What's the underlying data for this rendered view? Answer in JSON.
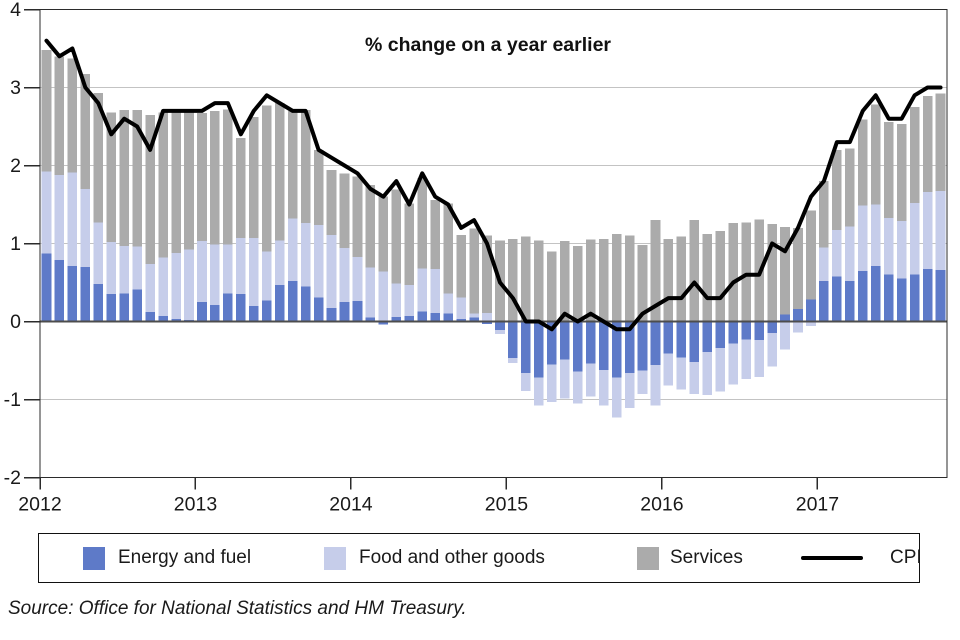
{
  "title": "% change on a year earlier",
  "source": "Source: Office for National Statistics and HM Treasury.",
  "colors": {
    "energy": "#5e7ac8",
    "food": "#c6cdea",
    "services": "#ababab",
    "cpi_line": "#000000",
    "gridline": "#c3c3c3",
    "zero_line": "#4d4d4d",
    "axis": "#2b2b2b",
    "text": "#1a1a1a"
  },
  "legend": {
    "items": [
      {
        "label": "Energy and fuel",
        "type": "swatch",
        "color": "#5e7ac8"
      },
      {
        "label": "Food and other goods",
        "type": "swatch",
        "color": "#c6cdea"
      },
      {
        "label": "Services",
        "type": "swatch",
        "color": "#ababab"
      },
      {
        "label": "CPI",
        "type": "line",
        "color": "#000000"
      }
    ]
  },
  "chart_data": {
    "type": "bar",
    "subtype": "stacked-bar-with-line",
    "title": "% change on a year earlier",
    "xlabel": "",
    "ylabel": "",
    "ylim": [
      -2,
      4
    ],
    "y_ticks": [
      4,
      3,
      2,
      1,
      0,
      -1,
      -2
    ],
    "x_tick_labels": [
      "2012",
      "2013",
      "2014",
      "2015",
      "2016",
      "2017"
    ],
    "grid": true,
    "legend_position": "bottom",
    "months": [
      "2012-01",
      "2012-02",
      "2012-03",
      "2012-04",
      "2012-05",
      "2012-06",
      "2012-07",
      "2012-08",
      "2012-09",
      "2012-10",
      "2012-11",
      "2012-12",
      "2013-01",
      "2013-02",
      "2013-03",
      "2013-04",
      "2013-05",
      "2013-06",
      "2013-07",
      "2013-08",
      "2013-09",
      "2013-10",
      "2013-11",
      "2013-12",
      "2014-01",
      "2014-02",
      "2014-03",
      "2014-04",
      "2014-05",
      "2014-06",
      "2014-07",
      "2014-08",
      "2014-09",
      "2014-10",
      "2014-11",
      "2014-12",
      "2015-01",
      "2015-02",
      "2015-03",
      "2015-04",
      "2015-05",
      "2015-06",
      "2015-07",
      "2015-08",
      "2015-09",
      "2015-10",
      "2015-11",
      "2015-12",
      "2016-01",
      "2016-02",
      "2016-03",
      "2016-04",
      "2016-05",
      "2016-06",
      "2016-07",
      "2016-08",
      "2016-09",
      "2016-10",
      "2016-11",
      "2016-12",
      "2017-01",
      "2017-02",
      "2017-03",
      "2017-04",
      "2017-05",
      "2017-06",
      "2017-07",
      "2017-08",
      "2017-09",
      "2017-10"
    ],
    "series": [
      {
        "name": "Energy and fuel",
        "type": "bar",
        "color": "#5e7ac8",
        "values": [
          0.87,
          0.79,
          0.71,
          0.7,
          0.48,
          0.35,
          0.36,
          0.41,
          0.12,
          0.07,
          0.03,
          0.02,
          0.25,
          0.21,
          0.36,
          0.35,
          0.2,
          0.27,
          0.47,
          0.52,
          0.45,
          0.31,
          0.17,
          0.25,
          0.26,
          0.05,
          -0.04,
          0.06,
          0.07,
          0.13,
          0.11,
          0.1,
          0.03,
          0.05,
          -0.03,
          -0.11,
          -0.47,
          -0.66,
          -0.72,
          -0.55,
          -0.49,
          -0.64,
          -0.54,
          -0.62,
          -0.72,
          -0.66,
          -0.63,
          -0.56,
          -0.41,
          -0.46,
          -0.52,
          -0.39,
          -0.34,
          -0.28,
          -0.23,
          -0.24,
          -0.15,
          0.09,
          0.16,
          0.28,
          0.52,
          0.58,
          0.52,
          0.65,
          0.71,
          0.6,
          0.55,
          0.6,
          0.67,
          0.66
        ]
      },
      {
        "name": "Food and other goods",
        "type": "bar",
        "color": "#c6cdea",
        "values": [
          1.05,
          1.09,
          1.2,
          1.0,
          0.79,
          0.67,
          0.61,
          0.55,
          0.62,
          0.75,
          0.85,
          0.9,
          0.78,
          0.78,
          0.63,
          0.72,
          0.87,
          0.63,
          0.57,
          0.8,
          0.81,
          0.93,
          0.94,
          0.69,
          0.57,
          0.64,
          0.64,
          0.43,
          0.4,
          0.55,
          0.56,
          0.26,
          0.28,
          0.05,
          0.11,
          -0.05,
          -0.06,
          -0.23,
          -0.36,
          -0.48,
          -0.5,
          -0.41,
          -0.42,
          -0.46,
          -0.51,
          -0.45,
          -0.3,
          -0.52,
          -0.41,
          -0.41,
          -0.41,
          -0.55,
          -0.56,
          -0.53,
          -0.51,
          -0.47,
          -0.43,
          -0.36,
          -0.14,
          -0.06,
          0.43,
          0.59,
          0.7,
          0.84,
          0.79,
          0.73,
          0.74,
          0.92,
          0.99,
          1.01
        ]
      },
      {
        "name": "Services",
        "type": "bar",
        "color": "#ababab",
        "values": [
          1.56,
          1.52,
          1.46,
          1.47,
          1.66,
          1.66,
          1.74,
          1.75,
          1.91,
          1.86,
          1.8,
          1.76,
          1.64,
          1.71,
          1.73,
          1.28,
          1.55,
          1.87,
          1.76,
          1.38,
          1.45,
          0.96,
          0.83,
          0.96,
          1.03,
          1.06,
          0.96,
          1.2,
          1.04,
          1.16,
          0.89,
          1.15,
          0.8,
          1.09,
          0.99,
          1.04,
          1.06,
          1.09,
          1.04,
          0.9,
          1.03,
          0.97,
          1.05,
          1.06,
          1.12,
          1.1,
          0.98,
          1.3,
          1.06,
          1.09,
          1.3,
          1.12,
          1.16,
          1.26,
          1.27,
          1.31,
          1.25,
          1.12,
          1.04,
          1.14,
          0.85,
          1.03,
          1.0,
          1.1,
          1.28,
          1.23,
          1.24,
          1.23,
          1.23,
          1.25
        ]
      },
      {
        "name": "CPI",
        "type": "line",
        "color": "#000000",
        "values": [
          3.6,
          3.4,
          3.5,
          3.0,
          2.8,
          2.4,
          2.6,
          2.5,
          2.2,
          2.7,
          2.7,
          2.7,
          2.7,
          2.8,
          2.8,
          2.4,
          2.7,
          2.9,
          2.8,
          2.7,
          2.7,
          2.2,
          2.1,
          2.0,
          1.9,
          1.7,
          1.6,
          1.8,
          1.5,
          1.9,
          1.6,
          1.5,
          1.2,
          1.3,
          1.0,
          0.5,
          0.3,
          0.0,
          0.0,
          -0.1,
          0.1,
          0.0,
          0.1,
          0.0,
          -0.1,
          -0.1,
          0.1,
          0.2,
          0.3,
          0.3,
          0.5,
          0.3,
          0.3,
          0.5,
          0.6,
          0.6,
          1.0,
          0.9,
          1.2,
          1.6,
          1.8,
          2.3,
          2.3,
          2.7,
          2.9,
          2.6,
          2.6,
          2.9,
          3.0,
          3.0
        ]
      }
    ]
  }
}
